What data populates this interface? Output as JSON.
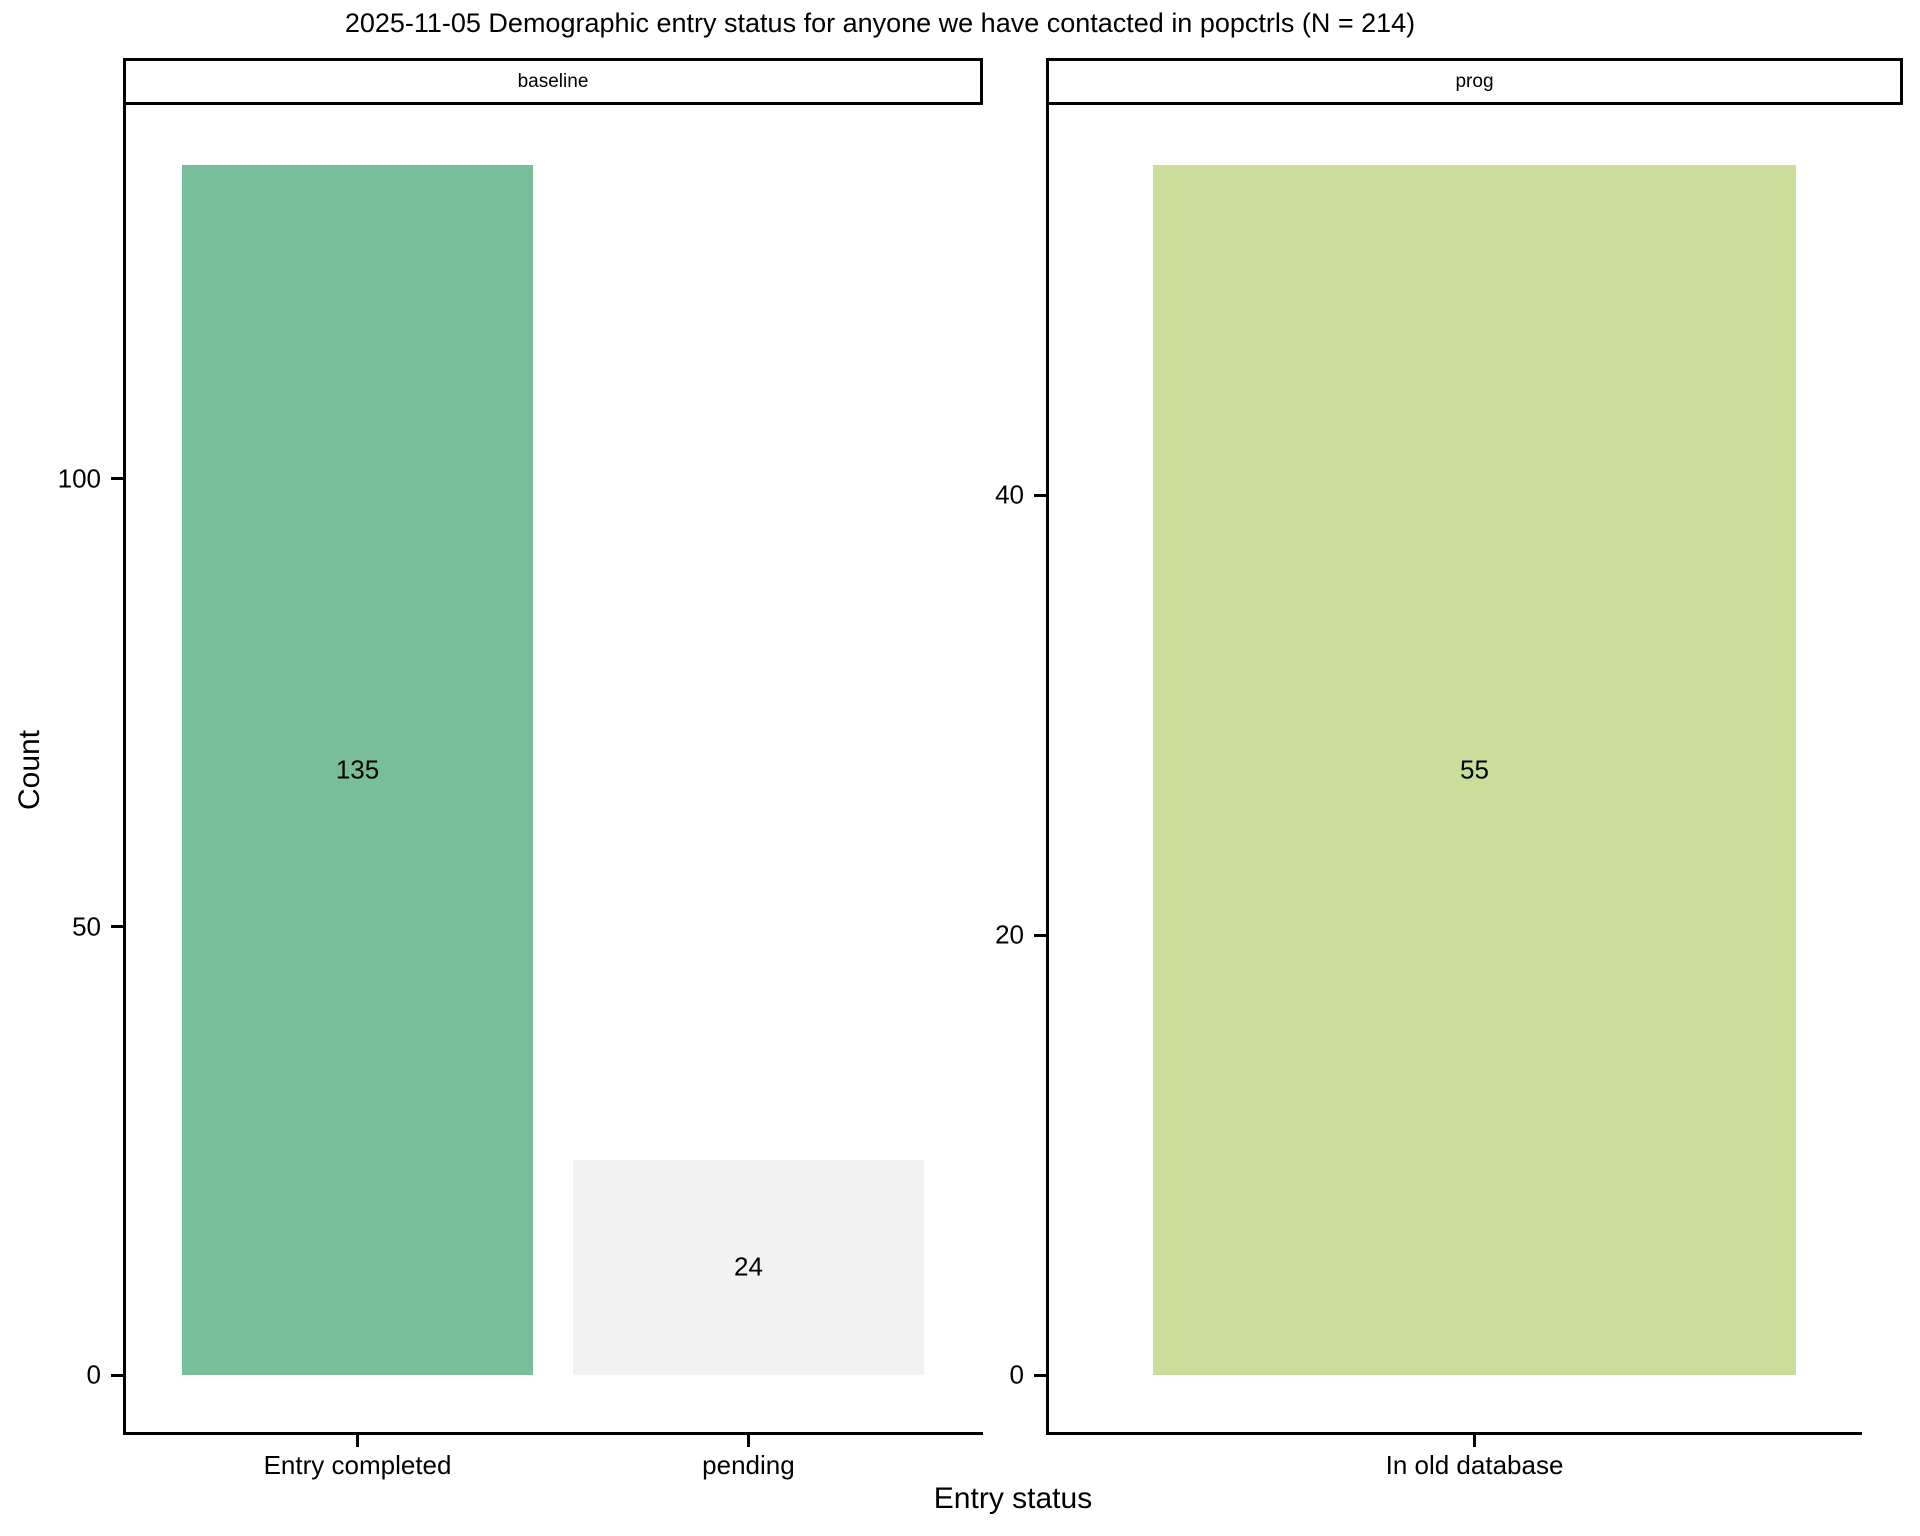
{
  "chart_title": "2025-11-05 Demographic entry status for anyone we have contacted in popctrls (N = 214)",
  "chart_data": {
    "type": "bar",
    "title": "2025-11-05 Demographic entry status for anyone we have contacted in popctrls (N = 214)",
    "xlabel": "Entry status",
    "ylabel": "Count",
    "legend_position": "none",
    "grid": "off",
    "panel_background": "#FFFFFF",
    "total_n": 214,
    "facets": [
      {
        "label": "baseline",
        "categories": [
          "Entry completed",
          "pending"
        ],
        "values": [
          135,
          24
        ],
        "bar_labels": [
          "135",
          "24"
        ],
        "bar_colors": [
          "#78BE98",
          "#F2F2F2"
        ],
        "yticks": [
          0,
          50,
          100
        ],
        "ylim": [
          0,
          142
        ]
      },
      {
        "label": "prog",
        "categories": [
          "In old database"
        ],
        "values": [
          55
        ],
        "bar_labels": [
          "55"
        ],
        "bar_colors": [
          "#CBDD9A"
        ],
        "yticks": [
          0,
          20,
          40
        ],
        "ylim": [
          0,
          58
        ]
      }
    ]
  }
}
